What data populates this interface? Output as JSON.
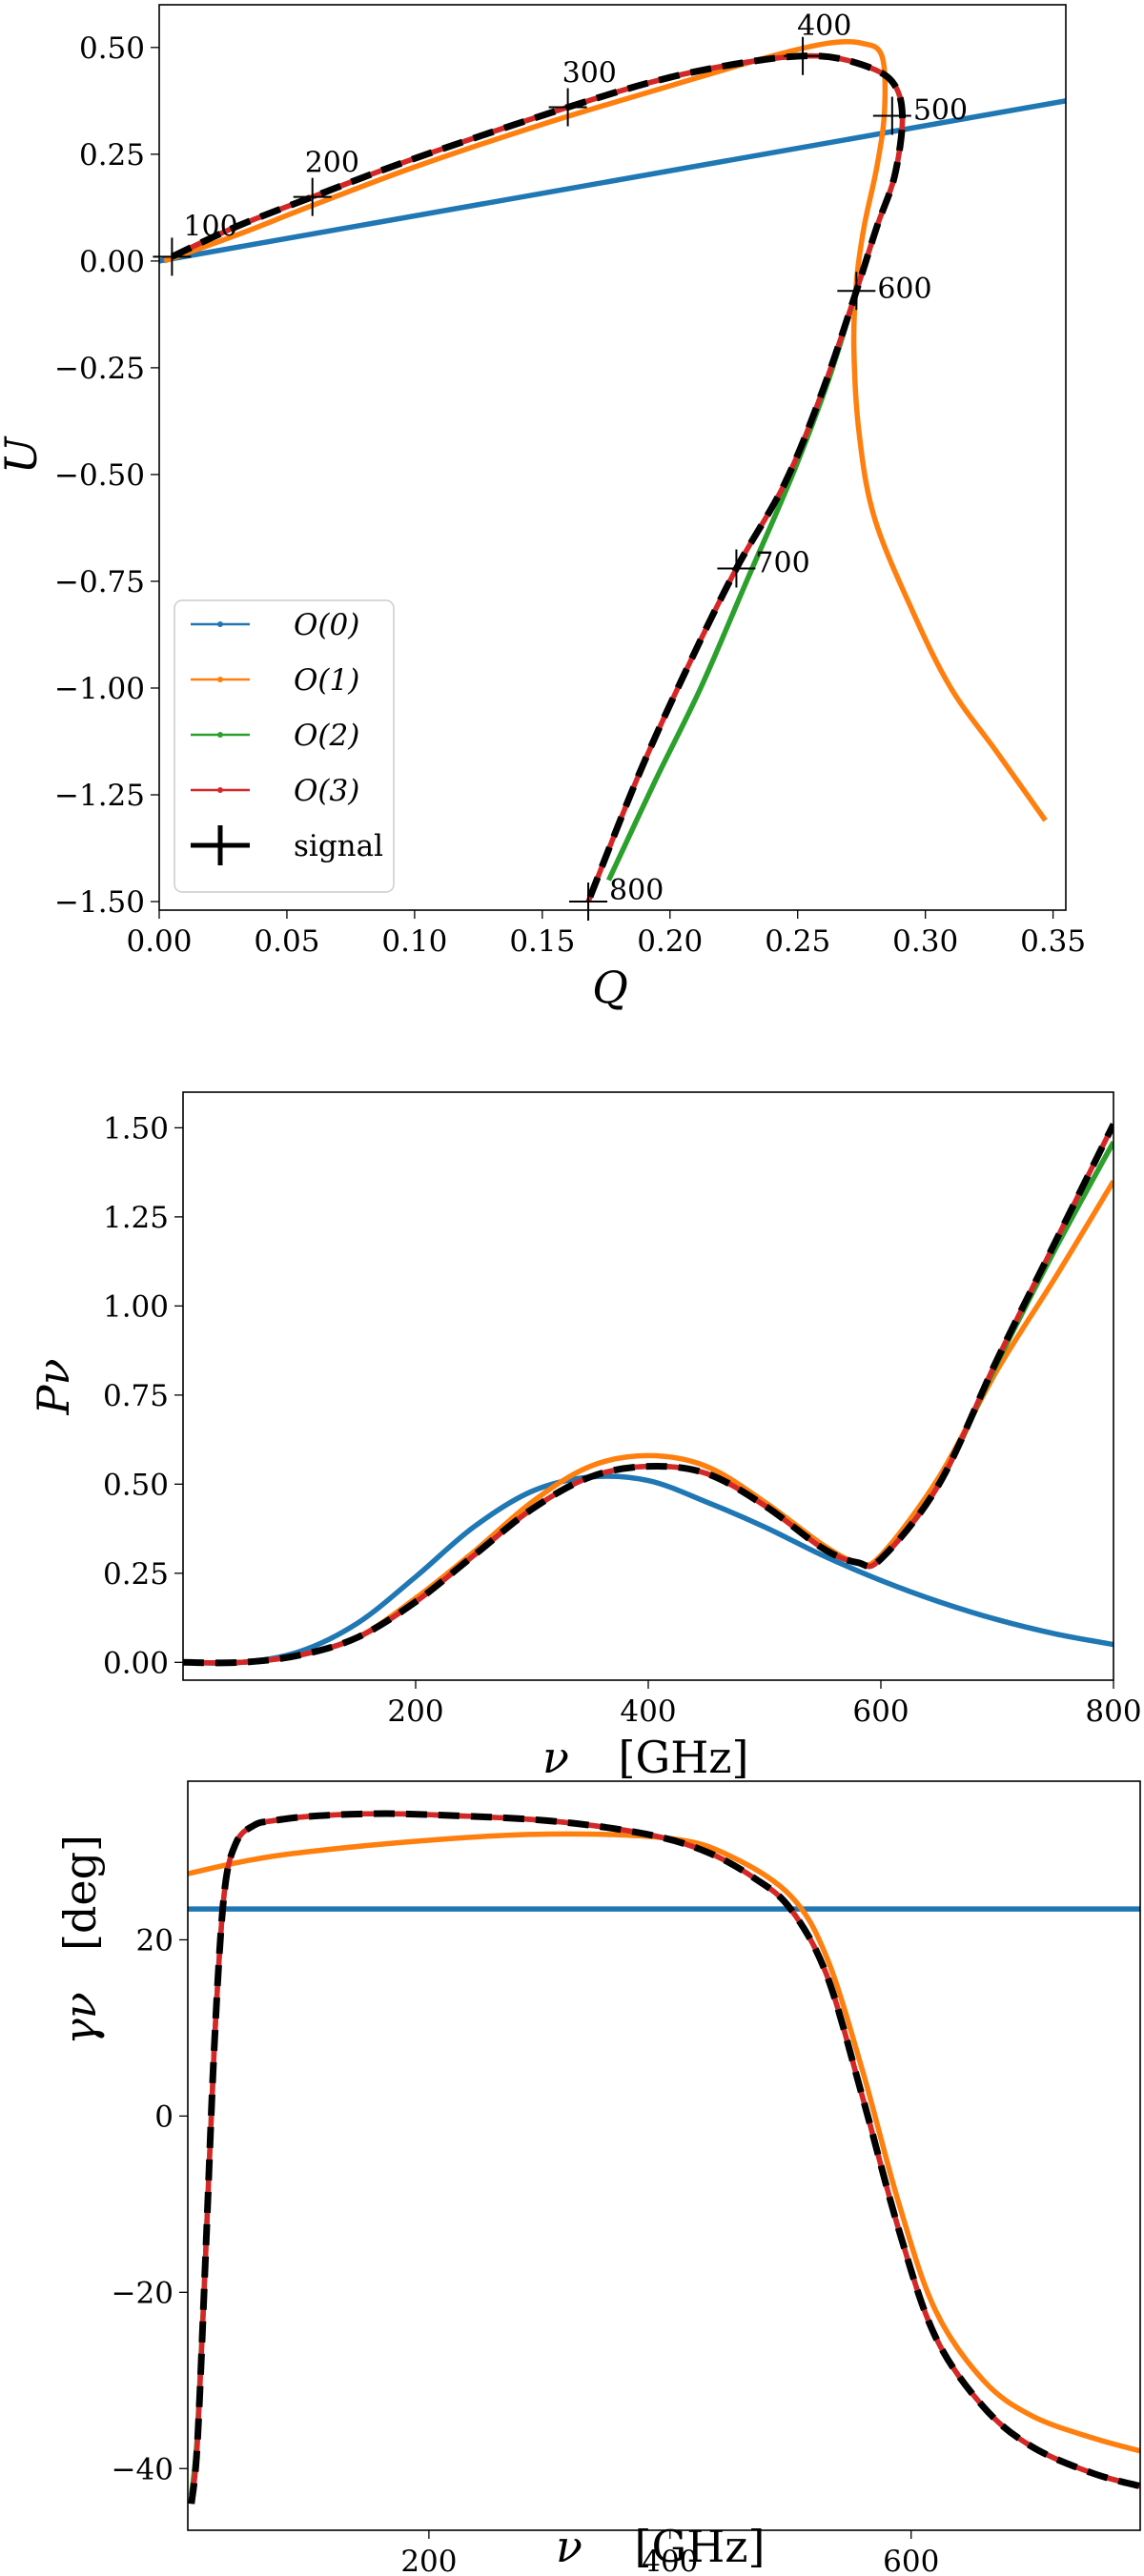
{
  "colors": {
    "O0": "#1f77b4",
    "O1": "#ff7f0e",
    "O2": "#2ca02c",
    "O3": "#d62728",
    "signal": "#000000"
  },
  "chart_data": [
    {
      "type": "line",
      "title": "",
      "xlabel": "Q",
      "ylabel": "U",
      "xlim": [
        0.0,
        0.355
      ],
      "ylim": [
        -1.52,
        0.6
      ],
      "xticks": [
        "0.00",
        "0.05",
        "0.10",
        "0.15",
        "0.20",
        "0.25",
        "0.30",
        "0.35"
      ],
      "xtick_values": [
        0.0,
        0.05,
        0.1,
        0.15,
        0.2,
        0.25,
        0.3,
        0.35
      ],
      "yticks": [
        "0.50",
        "0.25",
        "0.00",
        "−0.25",
        "−0.50",
        "−0.75",
        "−1.00",
        "−1.25",
        "−1.50"
      ],
      "ytick_values": [
        0.5,
        0.25,
        0.0,
        -0.25,
        -0.5,
        -0.75,
        -1.0,
        -1.25,
        -1.5
      ],
      "legend": {
        "position": "lower-left",
        "entries": [
          {
            "key": "O0",
            "label": "O(0)"
          },
          {
            "key": "O1",
            "label": "O(1)"
          },
          {
            "key": "O2",
            "label": "O(2)"
          },
          {
            "key": "O3",
            "label": "O(3)"
          },
          {
            "key": "signal",
            "label": "signal"
          }
        ]
      },
      "series": [
        {
          "name": "O(0)",
          "key": "O0",
          "x": [
            0.0,
            0.355
          ],
          "y": [
            0.0,
            0.375
          ]
        },
        {
          "name": "O(1)",
          "key": "O1",
          "x": [
            0.002,
            0.03,
            0.06,
            0.1,
            0.15,
            0.2,
            0.24,
            0.262,
            0.275,
            0.283,
            0.284,
            0.281,
            0.276,
            0.273,
            0.272,
            0.274,
            0.28,
            0.295,
            0.31,
            0.328,
            0.347
          ],
          "y": [
            0.0,
            0.06,
            0.13,
            0.22,
            0.32,
            0.41,
            0.48,
            0.51,
            0.51,
            0.48,
            0.35,
            0.22,
            0.08,
            -0.05,
            -0.2,
            -0.4,
            -0.6,
            -0.82,
            -1.0,
            -1.15,
            -1.31
          ]
        },
        {
          "name": "O(2)",
          "key": "O2",
          "x": [
            0.005,
            0.03,
            0.06,
            0.1,
            0.16,
            0.2,
            0.235,
            0.258,
            0.275,
            0.287,
            0.291,
            0.288,
            0.281,
            0.273,
            0.262,
            0.248,
            0.23,
            0.212,
            0.194,
            0.176
          ],
          "y": [
            0.01,
            0.08,
            0.15,
            0.24,
            0.36,
            0.43,
            0.47,
            0.48,
            0.46,
            0.42,
            0.34,
            0.2,
            0.08,
            -0.07,
            -0.28,
            -0.5,
            -0.75,
            -1.0,
            -1.22,
            -1.45
          ]
        },
        {
          "name": "O(3)",
          "key": "O3",
          "x": [
            0.005,
            0.03,
            0.06,
            0.1,
            0.16,
            0.2,
            0.235,
            0.258,
            0.275,
            0.287,
            0.291,
            0.288,
            0.281,
            0.273,
            0.26,
            0.245,
            0.226,
            0.207,
            0.188,
            0.168
          ],
          "y": [
            0.01,
            0.08,
            0.15,
            0.24,
            0.36,
            0.43,
            0.47,
            0.48,
            0.46,
            0.42,
            0.34,
            0.2,
            0.08,
            -0.07,
            -0.3,
            -0.52,
            -0.72,
            -0.95,
            -1.2,
            -1.5
          ]
        },
        {
          "name": "signal",
          "key": "signal",
          "x": [
            0.005,
            0.03,
            0.06,
            0.1,
            0.16,
            0.2,
            0.235,
            0.258,
            0.275,
            0.287,
            0.291,
            0.288,
            0.281,
            0.273,
            0.26,
            0.245,
            0.226,
            0.207,
            0.188,
            0.168
          ],
          "y": [
            0.01,
            0.08,
            0.15,
            0.24,
            0.36,
            0.43,
            0.47,
            0.48,
            0.46,
            0.42,
            0.34,
            0.2,
            0.08,
            -0.07,
            -0.3,
            -0.52,
            -0.72,
            -0.95,
            -1.2,
            -1.5
          ]
        }
      ],
      "markers": [
        {
          "label": "100",
          "x": 0.005,
          "y": 0.01
        },
        {
          "label": "200",
          "x": 0.06,
          "y": 0.15
        },
        {
          "label": "300",
          "x": 0.16,
          "y": 0.36
        },
        {
          "label": "400",
          "x": 0.252,
          "y": 0.48
        },
        {
          "label": "500",
          "x": 0.287,
          "y": 0.34
        },
        {
          "label": "600",
          "x": 0.273,
          "y": -0.07
        },
        {
          "label": "700",
          "x": 0.226,
          "y": -0.72
        },
        {
          "label": "800",
          "x": 0.168,
          "y": -1.5
        }
      ]
    },
    {
      "type": "line",
      "title": "",
      "xlabel": "ν",
      "xunit": "[GHz]",
      "ylabel": "Pν",
      "xlim": [
        0,
        800
      ],
      "ylim": [
        -0.05,
        1.6
      ],
      "xticks": [
        "200",
        "400",
        "600",
        "800"
      ],
      "xtick_values": [
        200,
        400,
        600,
        800
      ],
      "yticks": [
        "0.00",
        "0.25",
        "0.50",
        "0.75",
        "1.00",
        "1.25",
        "1.50"
      ],
      "ytick_values": [
        0.0,
        0.25,
        0.5,
        0.75,
        1.0,
        1.25,
        1.5
      ],
      "series": [
        {
          "name": "O(0)",
          "key": "O0",
          "x": [
            0,
            50,
            100,
            150,
            200,
            250,
            300,
            350,
            400,
            450,
            500,
            550,
            600,
            650,
            700,
            750,
            800
          ],
          "y": [
            0.0,
            0.0,
            0.03,
            0.11,
            0.24,
            0.38,
            0.48,
            0.52,
            0.51,
            0.45,
            0.38,
            0.3,
            0.23,
            0.17,
            0.12,
            0.08,
            0.05
          ]
        },
        {
          "name": "O(1)",
          "key": "O1",
          "x": [
            0,
            50,
            100,
            150,
            200,
            250,
            300,
            350,
            400,
            450,
            500,
            550,
            580,
            600,
            650,
            700,
            750,
            800
          ],
          "y": [
            0.0,
            0.0,
            0.02,
            0.07,
            0.18,
            0.31,
            0.45,
            0.55,
            0.58,
            0.55,
            0.45,
            0.33,
            0.28,
            0.3,
            0.52,
            0.82,
            1.08,
            1.35
          ]
        },
        {
          "name": "O(2)",
          "key": "O2",
          "x": [
            0,
            50,
            100,
            150,
            200,
            250,
            300,
            350,
            400,
            450,
            500,
            550,
            580,
            600,
            650,
            700,
            750,
            800
          ],
          "y": [
            0.0,
            0.0,
            0.02,
            0.07,
            0.17,
            0.3,
            0.43,
            0.52,
            0.55,
            0.53,
            0.44,
            0.32,
            0.28,
            0.29,
            0.5,
            0.84,
            1.16,
            1.46
          ]
        },
        {
          "name": "O(3)",
          "key": "O3",
          "x": [
            0,
            50,
            100,
            150,
            200,
            250,
            300,
            350,
            400,
            450,
            500,
            550,
            580,
            600,
            650,
            700,
            750,
            800
          ],
          "y": [
            0.0,
            0.0,
            0.02,
            0.07,
            0.17,
            0.3,
            0.43,
            0.52,
            0.55,
            0.53,
            0.44,
            0.32,
            0.28,
            0.29,
            0.5,
            0.85,
            1.18,
            1.51
          ]
        },
        {
          "name": "signal",
          "key": "signal",
          "x": [
            0,
            50,
            100,
            150,
            200,
            250,
            300,
            350,
            400,
            450,
            500,
            550,
            580,
            600,
            650,
            700,
            750,
            800
          ],
          "y": [
            0.0,
            0.0,
            0.02,
            0.07,
            0.17,
            0.3,
            0.43,
            0.52,
            0.55,
            0.53,
            0.44,
            0.32,
            0.28,
            0.29,
            0.5,
            0.85,
            1.18,
            1.51
          ]
        }
      ]
    },
    {
      "type": "line",
      "title": "",
      "xlabel": "ν",
      "xunit": "[GHz]",
      "ylabel": "γν",
      "yunit": "[deg]",
      "xlim": [
        0,
        790
      ],
      "ylim": [
        -47,
        38
      ],
      "xticks": [
        "200",
        "400",
        "600"
      ],
      "xtick_values": [
        200,
        400,
        600
      ],
      "yticks": [
        "20",
        "0",
        "−20",
        "−40"
      ],
      "ytick_values": [
        20,
        0,
        -20,
        -40
      ],
      "series": [
        {
          "name": "O(0)",
          "key": "O0",
          "x": [
            0,
            790
          ],
          "y": [
            23.5,
            23.5
          ]
        },
        {
          "name": "O(1)",
          "key": "O1",
          "x": [
            0,
            50,
            100,
            200,
            300,
            400,
            450,
            500,
            530,
            560,
            590,
            620,
            660,
            700,
            750,
            790
          ],
          "y": [
            27.5,
            29.0,
            30.0,
            31.3,
            32.0,
            31.5,
            29.5,
            25.0,
            18.0,
            5.0,
            -10.0,
            -22.0,
            -30.0,
            -34.0,
            -36.5,
            -38.0
          ]
        },
        {
          "name": "O(2)",
          "key": "O2",
          "x": [
            3,
            8,
            15,
            22,
            30,
            40,
            55,
            70,
            100,
            150,
            200,
            300,
            380,
            430,
            470,
            500,
            530,
            560,
            590,
            620,
            660,
            700,
            750,
            790
          ],
          "y": [
            -43.0,
            -36.0,
            -15.0,
            8.0,
            25.0,
            31.0,
            33.0,
            33.5,
            34.0,
            34.3,
            34.2,
            33.5,
            32.0,
            30.0,
            27.0,
            23.5,
            16.0,
            2.0,
            -13.0,
            -25.0,
            -33.0,
            -37.5,
            -40.5,
            -42.0
          ]
        },
        {
          "name": "O(3)",
          "key": "O3",
          "x": [
            3,
            8,
            15,
            22,
            30,
            40,
            55,
            70,
            100,
            150,
            200,
            300,
            380,
            430,
            470,
            500,
            530,
            560,
            590,
            620,
            660,
            700,
            750,
            790
          ],
          "y": [
            -44.0,
            -37.0,
            -15.0,
            8.0,
            25.0,
            31.0,
            33.0,
            33.5,
            34.0,
            34.3,
            34.2,
            33.5,
            32.0,
            30.0,
            27.0,
            23.5,
            16.0,
            2.0,
            -13.0,
            -25.0,
            -33.0,
            -37.5,
            -40.5,
            -42.0
          ]
        },
        {
          "name": "signal",
          "key": "signal",
          "x": [
            3,
            8,
            15,
            22,
            30,
            40,
            55,
            70,
            100,
            150,
            200,
            300,
            380,
            430,
            470,
            500,
            530,
            560,
            590,
            620,
            660,
            700,
            750,
            790
          ],
          "y": [
            -44.0,
            -37.0,
            -15.0,
            8.0,
            25.0,
            31.0,
            33.0,
            33.5,
            34.0,
            34.3,
            34.2,
            33.5,
            32.0,
            30.0,
            27.0,
            23.5,
            16.0,
            2.0,
            -13.0,
            -25.0,
            -33.0,
            -37.5,
            -40.5,
            -42.0
          ]
        }
      ]
    }
  ]
}
